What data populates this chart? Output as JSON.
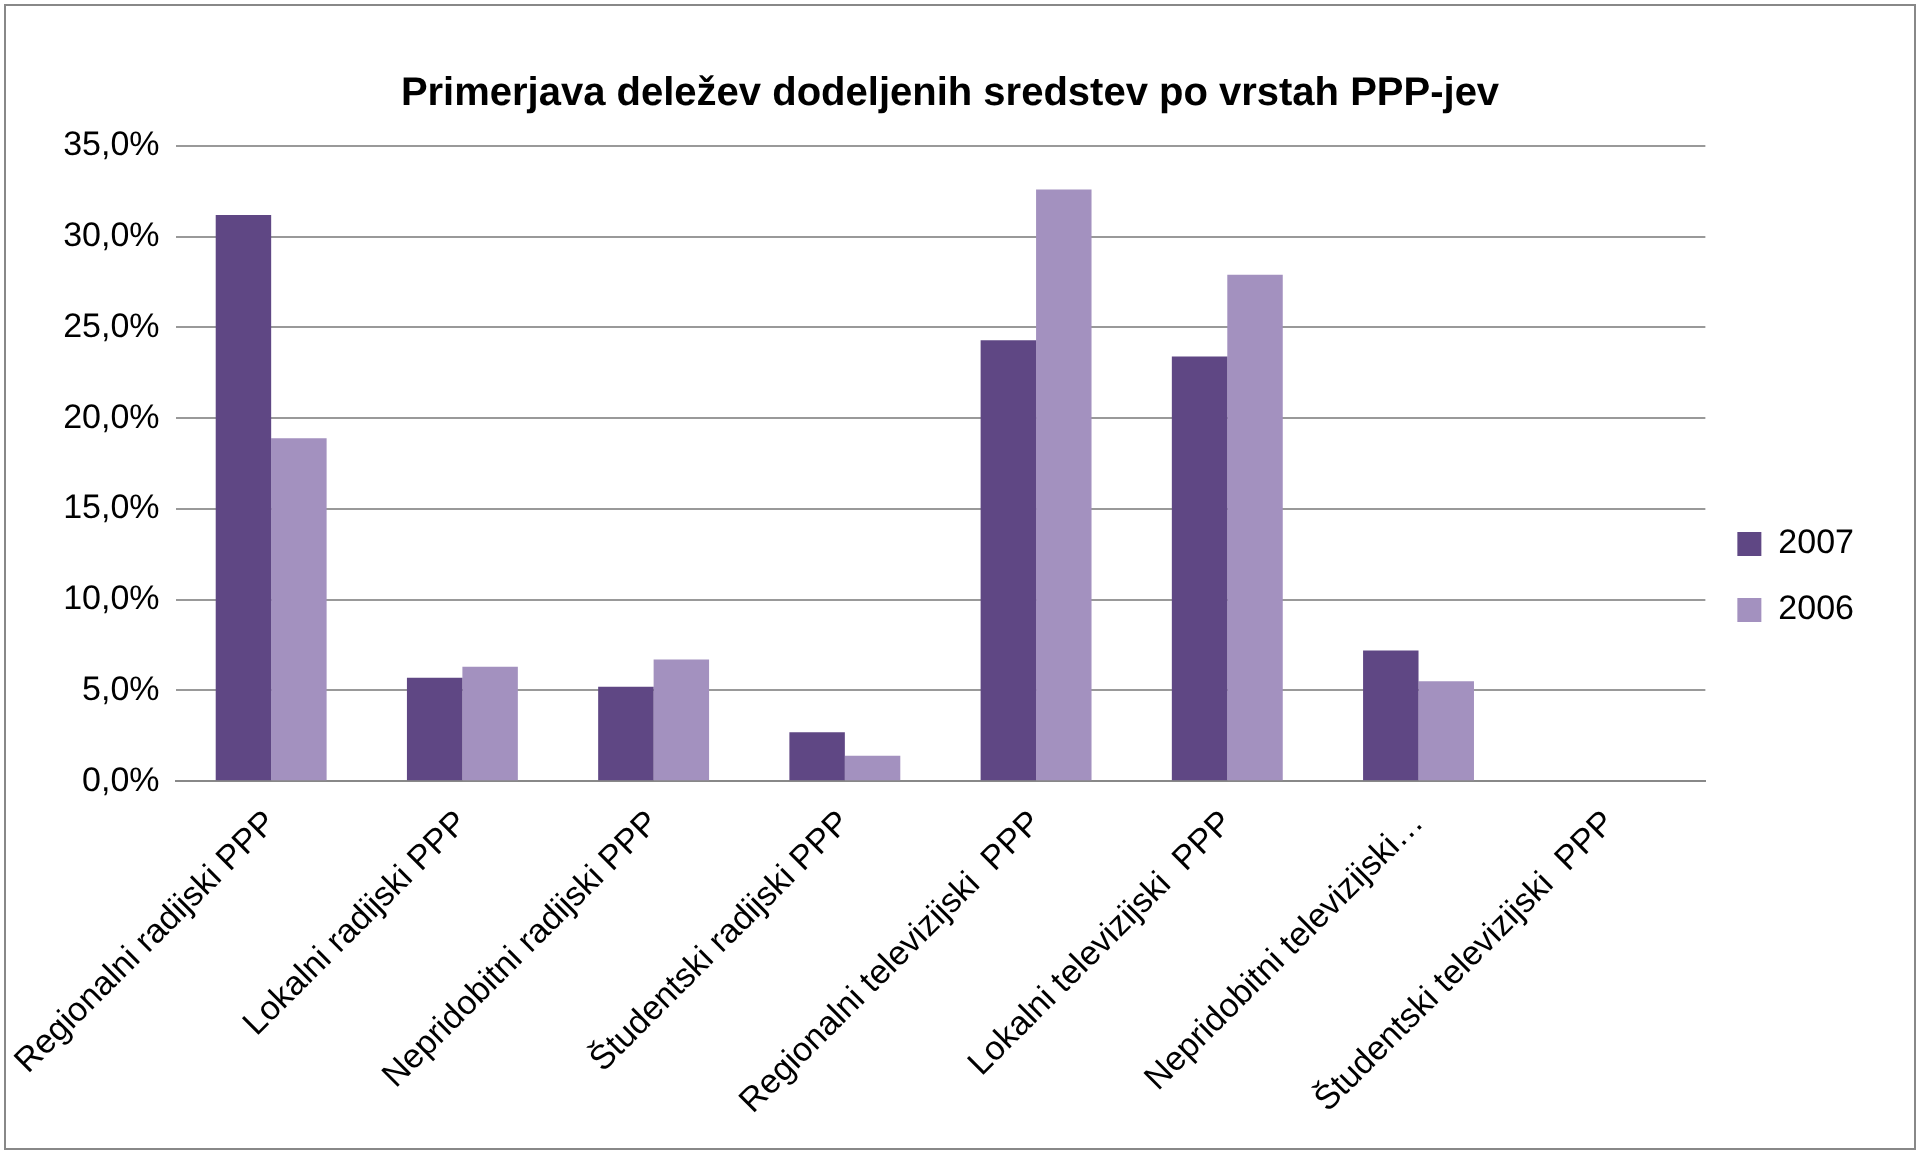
{
  "chart_data": {
    "type": "bar",
    "title": "Primerjava deležev dodeljenih sredstev po vrstah PPP-jev",
    "categories": [
      "Regionalni radijski PPP",
      "Lokalni radijski PPP",
      "Nepridobitni radijski PPP",
      "Študentski radijski PPP",
      "Regionalni televizijski  PPP",
      "Lokalni televizijski  PPP",
      "Nepridobitni televizijski…",
      "Študentski televizijski  PPP"
    ],
    "series": [
      {
        "name": "2007",
        "color": "#5f4784",
        "values": [
          31.2,
          5.7,
          5.2,
          2.7,
          24.3,
          23.4,
          7.2,
          null
        ]
      },
      {
        "name": "2006",
        "color": "#a391bf",
        "values": [
          18.9,
          6.3,
          6.7,
          1.4,
          32.6,
          27.9,
          5.5,
          null
        ]
      }
    ],
    "ylim": [
      0,
      35
    ],
    "yticks": [
      {
        "value": 0,
        "label": "0,0%"
      },
      {
        "value": 5,
        "label": "5,0%"
      },
      {
        "value": 10,
        "label": "10,0%"
      },
      {
        "value": 15,
        "label": "15,0%"
      },
      {
        "value": 20,
        "label": "20,0%"
      },
      {
        "value": 25,
        "label": "25,0%"
      },
      {
        "value": 30,
        "label": "30,0%"
      },
      {
        "value": 35,
        "label": "35,0%"
      }
    ],
    "grid": "y",
    "legend": "right"
  }
}
